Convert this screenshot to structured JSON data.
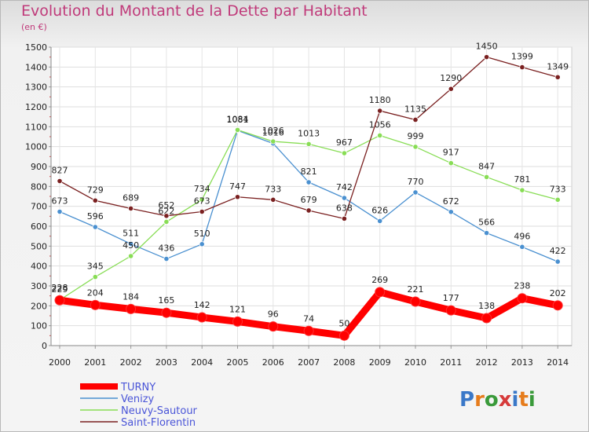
{
  "title": "Evolution du Montant de la Dette par Habitant",
  "unit": "(en €)",
  "logo": "Proxiti",
  "chart_data": {
    "type": "line",
    "title": "Evolution du Montant de la Dette par Habitant",
    "ylabel": "(en €)",
    "x": [
      2000,
      2001,
      2002,
      2003,
      2004,
      2005,
      2006,
      2007,
      2008,
      2009,
      2010,
      2011,
      2012,
      2013,
      2014
    ],
    "yticks": [
      0,
      100,
      200,
      300,
      400,
      500,
      600,
      700,
      800,
      900,
      1000,
      1100,
      1200,
      1300,
      1400,
      1500
    ],
    "ylim": [
      0,
      1500
    ],
    "grid": true,
    "legend": "bottom-left",
    "series": [
      {
        "name": "TURNY",
        "color": "#ff0000",
        "values": [
          228,
          204,
          184,
          165,
          142,
          121,
          96,
          74,
          50,
          269,
          221,
          177,
          138,
          238,
          202
        ]
      },
      {
        "name": "Venizy",
        "color": "#4a90d0",
        "values": [
          673,
          596,
          511,
          436,
          510,
          1081,
          1016,
          821,
          742,
          626,
          770,
          672,
          566,
          496,
          422
        ]
      },
      {
        "name": "Neuvy-Sautour",
        "color": "#88dd55",
        "values": [
          229,
          345,
          450,
          622,
          734,
          1084,
          1026,
          1013,
          967,
          1056,
          999,
          917,
          847,
          781,
          733
        ]
      },
      {
        "name": "Saint-Florentin",
        "color": "#7a2020",
        "values": [
          827,
          729,
          689,
          652,
          673,
          747,
          733,
          679,
          638,
          1180,
          1135,
          1290,
          1450,
          1399,
          1349
        ]
      }
    ]
  }
}
